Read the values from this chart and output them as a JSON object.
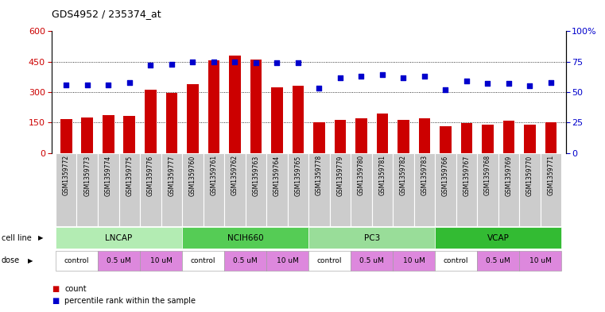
{
  "title": "GDS4952 / 235374_at",
  "samples": [
    "GSM1359772",
    "GSM1359773",
    "GSM1359774",
    "GSM1359775",
    "GSM1359776",
    "GSM1359777",
    "GSM1359760",
    "GSM1359761",
    "GSM1359762",
    "GSM1359763",
    "GSM1359764",
    "GSM1359765",
    "GSM1359778",
    "GSM1359779",
    "GSM1359780",
    "GSM1359781",
    "GSM1359782",
    "GSM1359783",
    "GSM1359766",
    "GSM1359767",
    "GSM1359768",
    "GSM1359769",
    "GSM1359770",
    "GSM1359771"
  ],
  "counts": [
    165,
    175,
    185,
    183,
    312,
    295,
    340,
    458,
    478,
    462,
    323,
    332,
    152,
    163,
    170,
    195,
    162,
    172,
    130,
    148,
    140,
    158,
    140,
    150
  ],
  "percentiles": [
    56,
    56,
    56,
    58,
    72,
    73,
    75,
    75,
    75,
    74,
    74,
    74,
    53,
    62,
    63,
    64,
    62,
    63,
    52,
    59,
    57,
    57,
    55,
    58
  ],
  "bar_color": "#cc0000",
  "dot_color": "#0000cc",
  "bg_color": "#ffffff",
  "tick_bg": "#cccccc",
  "ylim_left": [
    0,
    600
  ],
  "ylim_right": [
    0,
    100
  ],
  "yticks_left": [
    0,
    150,
    300,
    450,
    600
  ],
  "yticks_right": [
    0,
    25,
    50,
    75,
    100
  ],
  "grid_vals": [
    150,
    300,
    450
  ],
  "cell_lines": [
    {
      "name": "LNCAP",
      "start": 0,
      "end": 5,
      "color": "#b3ecb3"
    },
    {
      "name": "NCIH660",
      "start": 6,
      "end": 11,
      "color": "#55cc55"
    },
    {
      "name": "PC3",
      "start": 12,
      "end": 17,
      "color": "#99dd99"
    },
    {
      "name": "VCAP",
      "start": 18,
      "end": 23,
      "color": "#33bb33"
    }
  ],
  "dose_groups": [
    {
      "label": "control",
      "start": 0,
      "end": 1,
      "color": "#ffffff"
    },
    {
      "label": "0.5 uM",
      "start": 2,
      "end": 3,
      "color": "#dd88dd"
    },
    {
      "label": "10 uM",
      "start": 4,
      "end": 5,
      "color": "#dd88dd"
    },
    {
      "label": "control",
      "start": 6,
      "end": 7,
      "color": "#ffffff"
    },
    {
      "label": "0.5 uM",
      "start": 8,
      "end": 9,
      "color": "#dd88dd"
    },
    {
      "label": "10 uM",
      "start": 10,
      "end": 11,
      "color": "#dd88dd"
    },
    {
      "label": "control",
      "start": 12,
      "end": 13,
      "color": "#ffffff"
    },
    {
      "label": "0.5 uM",
      "start": 14,
      "end": 15,
      "color": "#dd88dd"
    },
    {
      "label": "10 uM",
      "start": 16,
      "end": 17,
      "color": "#dd88dd"
    },
    {
      "label": "control",
      "start": 18,
      "end": 19,
      "color": "#ffffff"
    },
    {
      "label": "0.5 uM",
      "start": 20,
      "end": 21,
      "color": "#dd88dd"
    },
    {
      "label": "10 uM",
      "start": 22,
      "end": 23,
      "color": "#dd88dd"
    }
  ]
}
